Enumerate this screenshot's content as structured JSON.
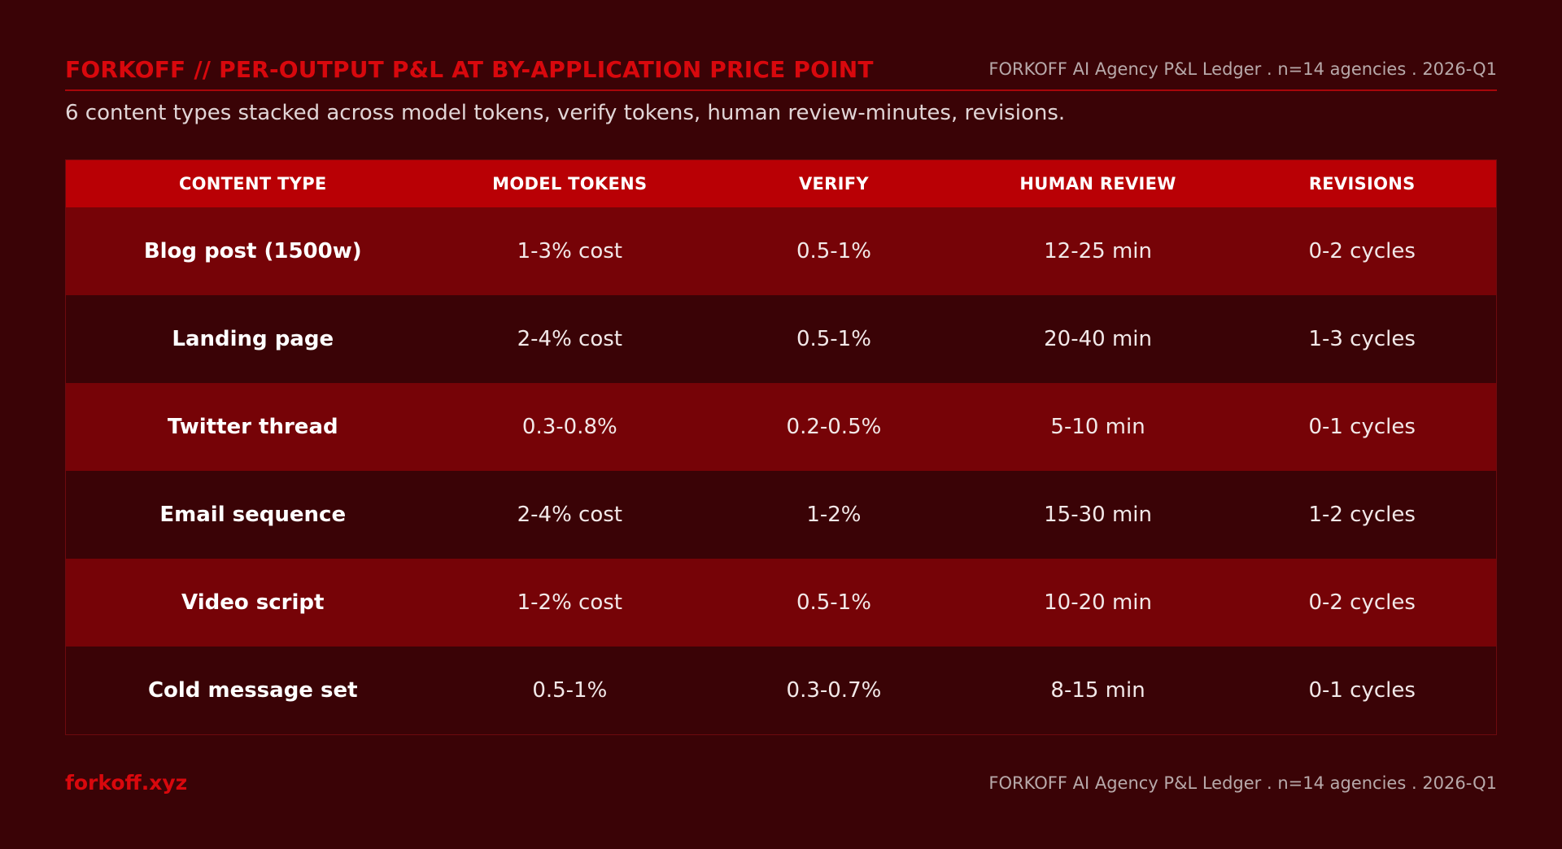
{
  "header": {
    "title": "FORKOFF // PER-OUTPUT P&L AT BY-APPLICATION PRICE POINT",
    "meta": "FORKOFF AI Agency P&L Ledger . n=14 agencies . 2026-Q1"
  },
  "subtitle": "6 content types stacked across model tokens, verify tokens, human review-minutes, revisions.",
  "table": {
    "columns": [
      "CONTENT TYPE",
      "MODEL TOKENS",
      "VERIFY",
      "HUMAN REVIEW",
      "REVISIONS"
    ],
    "rows": [
      [
        "Blog post (1500w)",
        "1-3% cost",
        "0.5-1%",
        "12-25 min",
        "0-2 cycles"
      ],
      [
        "Landing page",
        "2-4% cost",
        "0.5-1%",
        "20-40 min",
        "1-3 cycles"
      ],
      [
        "Twitter thread",
        "0.3-0.8%",
        "0.2-0.5%",
        "5-10 min",
        "0-1 cycles"
      ],
      [
        "Email sequence",
        "2-4% cost",
        "1-2%",
        "15-30 min",
        "1-2 cycles"
      ],
      [
        "Video script",
        "1-2% cost",
        "0.5-1%",
        "10-20 min",
        "0-2 cycles"
      ],
      [
        "Cold message set",
        "0.5-1%",
        "0.3-0.7%",
        "8-15 min",
        "0-1 cycles"
      ]
    ]
  },
  "footer": {
    "brand": "forkoff.xyz",
    "meta": "FORKOFF AI Agency P&L Ledger . n=14 agencies . 2026-Q1"
  },
  "colors": {
    "background": "#3a0306",
    "accent": "#d8080d",
    "header_row": "#b90005",
    "row_odd": "#760307",
    "row_even": "#3a0306"
  }
}
